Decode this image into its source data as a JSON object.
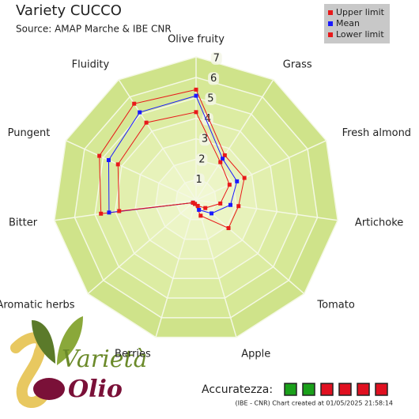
{
  "chart_data": {
    "type": "radar",
    "title": "Variety CUCCO",
    "subtitle": "Source: AMAP Marche & IBE CNR",
    "categories": [
      "Olive fruity",
      "Grass",
      "Fresh almond",
      "Artichoke",
      "Tomato",
      "Apple",
      "Berries",
      "Aromatic herbs",
      "Bitter",
      "Pungent",
      "Fluidity"
    ],
    "series": [
      {
        "name": "Upper limit",
        "color": "#e8191a",
        "values": [
          5.4,
          2.6,
          2.6,
          2.1,
          2.1,
          0.8,
          0.2,
          0.2,
          4.7,
          5.2,
          5.6
        ]
      },
      {
        "name": "Mean",
        "color": "#1a1aff",
        "values": [
          5.1,
          2.4,
          2.2,
          1.7,
          1.0,
          0.5,
          0.2,
          0.2,
          4.3,
          4.7,
          5.1
        ]
      },
      {
        "name": "Lower limit",
        "color": "#e8191a",
        "values": [
          4.3,
          2.2,
          1.8,
          1.2,
          0.6,
          0.3,
          0.2,
          0.2,
          3.8,
          4.2,
          4.5
        ]
      }
    ],
    "rlim": [
      0,
      7
    ],
    "rticks": [
      1,
      2,
      3,
      4,
      5,
      6,
      7
    ],
    "logo": {
      "top": "Varietà",
      "bottom": "Olio"
    },
    "accuracy": {
      "label": "Accuratezza:",
      "squares": [
        "#1aa01a",
        "#1aa01a",
        "#e01020",
        "#e01020",
        "#e01020",
        "#e01020"
      ]
    },
    "footer": "(IBE - CNR) Chart created at 01/05/2025 21:58:14"
  }
}
